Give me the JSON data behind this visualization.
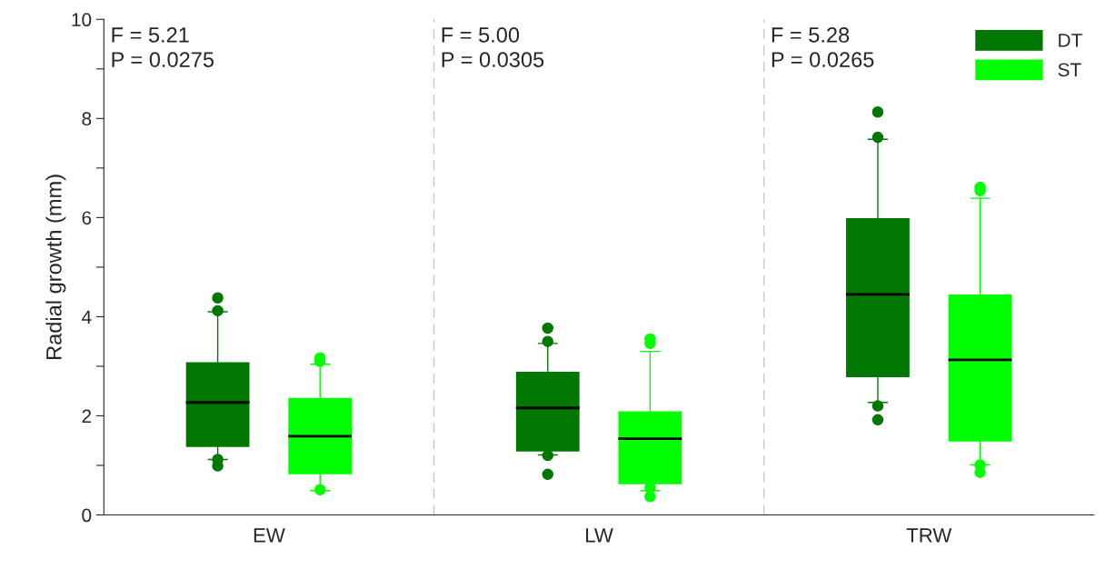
{
  "chart_data": {
    "type": "box",
    "ylabel": "Radial growth (mm)",
    "categories": [
      "EW",
      "LW",
      "TRW"
    ],
    "ylim": [
      0,
      10
    ],
    "yticks": [
      0,
      {
        "value": 1,
        "label": null
      },
      2,
      {
        "value": 3,
        "label": null
      },
      4,
      {
        "value": 5,
        "label": null
      },
      6,
      {
        "value": 7,
        "label": null
      },
      8,
      {
        "value": 9,
        "label": null
      },
      10
    ],
    "legend": "top right",
    "grid": false,
    "series": [
      {
        "name": "DT",
        "color": "#007800",
        "boxes": [
          {
            "low": 1.12,
            "q1": 1.37,
            "median": 2.27,
            "q3": 3.08,
            "high": 4.1,
            "outliers": [
              4.38,
              4.12,
              1.12,
              0.99
            ]
          },
          {
            "low": 1.21,
            "q1": 1.28,
            "median": 2.16,
            "q3": 2.89,
            "high": 3.46,
            "outliers": [
              3.77,
              3.5,
              1.2,
              0.82
            ]
          },
          {
            "low": 2.27,
            "q1": 2.78,
            "median": 4.45,
            "q3": 5.99,
            "high": 7.58,
            "outliers": [
              8.13,
              7.62,
              2.2,
              1.92
            ]
          }
        ]
      },
      {
        "name": "ST",
        "color": "#00ff00",
        "boxes": [
          {
            "low": 0.49,
            "q1": 0.82,
            "median": 1.59,
            "q3": 2.36,
            "high": 3.04,
            "outliers": [
              3.17,
              3.1,
              0.51
            ]
          },
          {
            "low": 0.49,
            "q1": 0.62,
            "median": 1.54,
            "q3": 2.09,
            "high": 3.3,
            "outliers": [
              3.55,
              3.46,
              0.55,
              0.37
            ]
          },
          {
            "low": 1.01,
            "q1": 1.48,
            "median": 3.13,
            "q3": 4.45,
            "high": 6.39,
            "outliers": [
              6.61,
              6.54,
              1.01,
              0.86
            ]
          }
        ]
      }
    ],
    "annotations": [
      "F = 5.21\nP = 0.0275",
      "F = 5.00\nP = 0.0305",
      "F = 5.28\nP = 0.0265"
    ]
  }
}
